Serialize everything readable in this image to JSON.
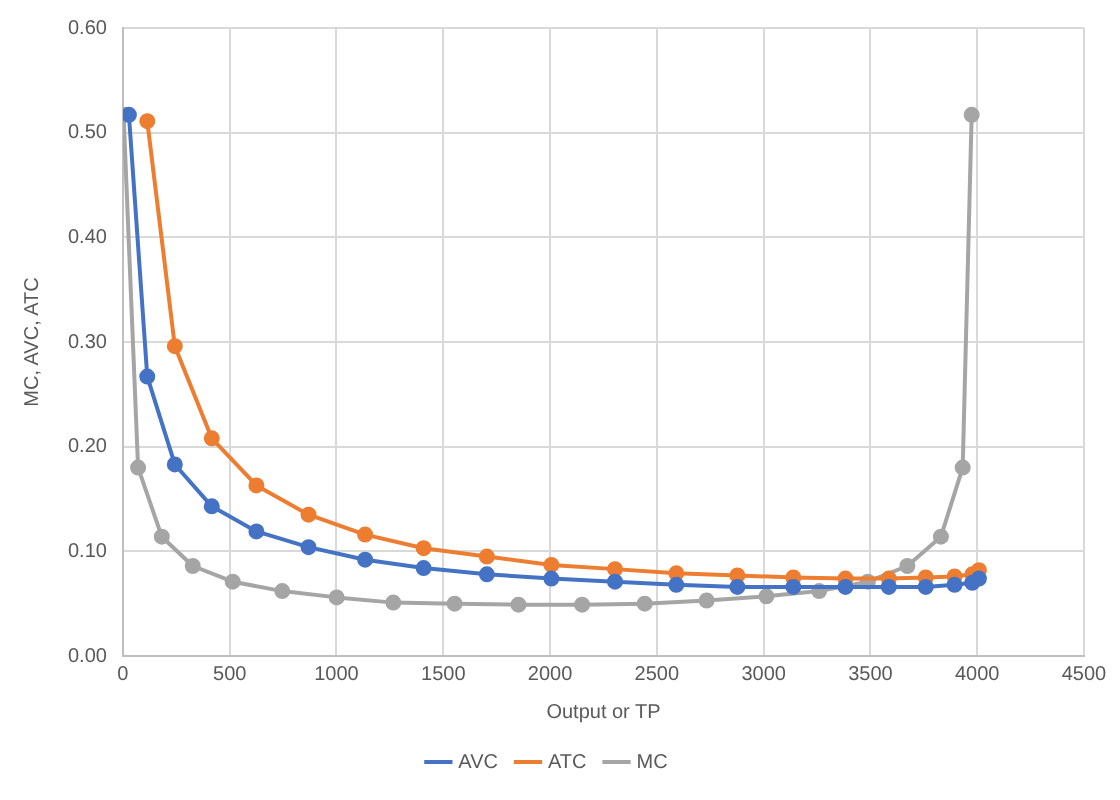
{
  "chart_data": {
    "type": "line",
    "xlabel": "Output or TP",
    "ylabel": "MC, AVC, ATC",
    "xlim": [
      0,
      4500
    ],
    "xticks": [
      0,
      500,
      1000,
      1500,
      2000,
      2500,
      3000,
      3500,
      4000,
      4500
    ],
    "ylim": [
      0,
      0.6
    ],
    "yticks": [
      {
        "value": 0,
        "label": "0.00"
      },
      {
        "value": 0.1,
        "label": "0.10"
      },
      {
        "value": 0.2,
        "label": "0.20"
      },
      {
        "value": 0.3,
        "label": "0.30"
      },
      {
        "value": 0.4,
        "label": "0.40"
      },
      {
        "value": 0.5,
        "label": "0.50"
      },
      {
        "value": 0.6,
        "label": "0.60"
      }
    ],
    "grid": true,
    "legend": "bottom",
    "marker": "circle",
    "line_style": "solid",
    "series": [
      {
        "name": "AVC",
        "color": "#4472c4",
        "x": [
          28,
          114,
          243,
          416,
          625,
          869,
          1134,
          1408,
          1704,
          2006,
          2304,
          2591,
          2877,
          3139,
          3383,
          3586,
          3759,
          3894,
          3977,
          4008
        ],
        "values": [
          0.517,
          0.267,
          0.183,
          0.143,
          0.119,
          0.104,
          0.092,
          0.084,
          0.078,
          0.074,
          0.071,
          0.068,
          0.066,
          0.066,
          0.066,
          0.066,
          0.066,
          0.068,
          0.07,
          0.074
        ]
      },
      {
        "name": "ATC",
        "color": "#ed7d31",
        "x": [
          114,
          243,
          416,
          625,
          869,
          1134,
          1408,
          1704,
          2006,
          2304,
          2591,
          2877,
          3139,
          3383,
          3586,
          3759,
          3894,
          3977,
          4008
        ],
        "values": [
          0.511,
          0.296,
          0.208,
          0.163,
          0.135,
          0.116,
          0.103,
          0.095,
          0.087,
          0.083,
          0.079,
          0.077,
          0.075,
          0.074,
          0.074,
          0.075,
          0.076,
          0.078,
          0.082
        ]
      },
      {
        "name": "MC",
        "color": "#a5a5a5",
        "x": [
          3,
          71,
          182,
          327,
          514,
          746,
          1001,
          1266,
          1553,
          1852,
          2150,
          2443,
          2733,
          3013,
          3260,
          3488,
          3673,
          3830,
          3932,
          3974
        ],
        "values": [
          0.517,
          0.18,
          0.114,
          0.086,
          0.071,
          0.062,
          0.056,
          0.051,
          0.05,
          0.049,
          0.049,
          0.05,
          0.053,
          0.057,
          0.062,
          0.071,
          0.086,
          0.114,
          0.18,
          0.517
        ]
      }
    ]
  }
}
